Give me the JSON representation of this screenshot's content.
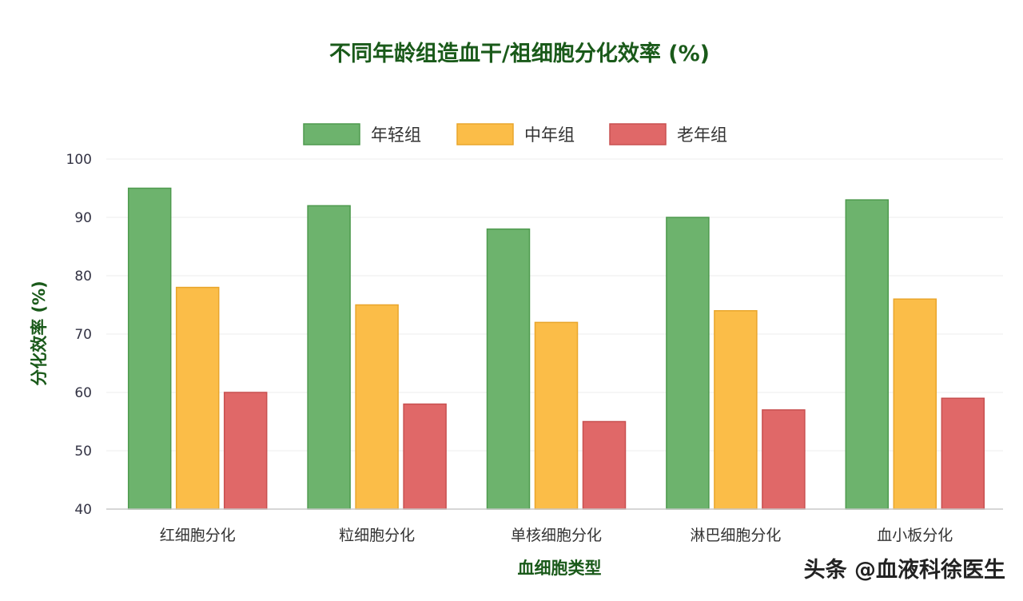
{
  "chart_data": {
    "type": "bar",
    "title": "不同年龄组造血干/祖细胞分化效率 (%)",
    "xlabel": "血细胞类型",
    "ylabel": "分化效率 (%)",
    "ylim": [
      40,
      100
    ],
    "yticks": [
      40,
      50,
      60,
      70,
      80,
      90,
      100
    ],
    "categories": [
      "红细胞分化",
      "粒细胞分化",
      "单核细胞分化",
      "淋巴细胞分化",
      "血小板分化"
    ],
    "series": [
      {
        "name": "年轻组",
        "color": "#6db36d",
        "stroke": "#4e9a4e",
        "values": [
          95,
          92,
          88,
          90,
          93
        ]
      },
      {
        "name": "中年组",
        "color": "#fbbd48",
        "stroke": "#e9a62c",
        "values": [
          78,
          75,
          72,
          74,
          76
        ]
      },
      {
        "name": "老年组",
        "color": "#e06868",
        "stroke": "#c85050",
        "values": [
          60,
          58,
          55,
          57,
          59
        ]
      }
    ],
    "legend_position": "top-center",
    "grid": true
  },
  "watermark": "头条 @血液科徐医生"
}
